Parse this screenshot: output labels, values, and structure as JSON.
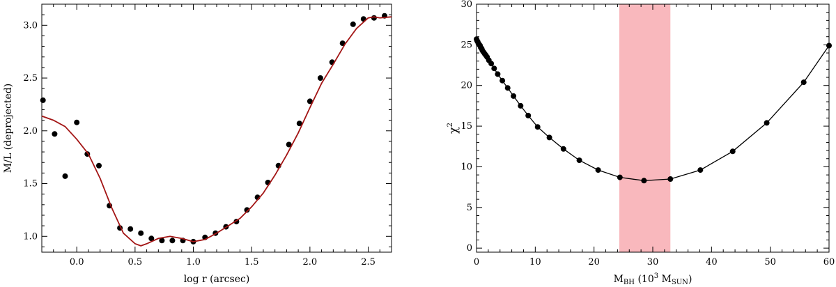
{
  "chart_data": [
    {
      "type": "scatter",
      "xlabel": "log r (arcsec)",
      "ylabel": "M/L (deprojected)",
      "xlim": [
        -0.3,
        2.7
      ],
      "ylim": [
        0.85,
        3.2
      ],
      "xticks": [
        0.0,
        0.5,
        1.0,
        1.5,
        2.0,
        2.5
      ],
      "xtick_labels": [
        "0.0",
        "0.5",
        "1.0",
        "1.5",
        "2.0",
        "2.5"
      ],
      "yticks": [
        1.0,
        1.5,
        2.0,
        2.5,
        3.0
      ],
      "ytick_labels": [
        "1.0",
        "1.5",
        "2.0",
        "2.5",
        "3.0"
      ],
      "grid": false,
      "series": [
        {
          "kind": "points",
          "color": "#000000",
          "x": [
            -0.29,
            -0.19,
            -0.1,
            0.0,
            0.09,
            0.19,
            0.28,
            0.37,
            0.46,
            0.55,
            0.64,
            0.73,
            0.82,
            0.91,
            1.0,
            1.1,
            1.19,
            1.28,
            1.37,
            1.46,
            1.55,
            1.64,
            1.73,
            1.82,
            1.91,
            2.0,
            2.09,
            2.19,
            2.28,
            2.37,
            2.46,
            2.55,
            2.64
          ],
          "y": [
            2.29,
            1.97,
            1.57,
            2.08,
            1.78,
            1.67,
            1.29,
            1.08,
            1.07,
            1.03,
            0.98,
            0.96,
            0.96,
            0.96,
            0.95,
            0.99,
            1.03,
            1.09,
            1.14,
            1.25,
            1.37,
            1.51,
            1.67,
            1.87,
            2.07,
            2.28,
            2.5,
            2.65,
            2.83,
            3.01,
            3.06,
            3.07,
            3.09
          ]
        },
        {
          "kind": "line",
          "color": "#a31515",
          "x": [
            -0.3,
            -0.2,
            -0.1,
            0.0,
            0.1,
            0.2,
            0.3,
            0.4,
            0.5,
            0.55,
            0.6,
            0.7,
            0.8,
            0.9,
            1.0,
            1.1,
            1.2,
            1.3,
            1.4,
            1.5,
            1.6,
            1.7,
            1.8,
            1.9,
            2.0,
            2.1,
            2.2,
            2.3,
            2.4,
            2.5,
            2.55,
            2.6,
            2.7
          ],
          "y": [
            2.14,
            2.1,
            2.04,
            1.92,
            1.78,
            1.55,
            1.27,
            1.03,
            0.93,
            0.91,
            0.93,
            0.98,
            1.0,
            0.98,
            0.95,
            0.97,
            1.03,
            1.1,
            1.17,
            1.28,
            1.41,
            1.58,
            1.77,
            1.98,
            2.22,
            2.45,
            2.63,
            2.82,
            2.97,
            3.07,
            3.08,
            3.07,
            3.08
          ]
        }
      ]
    },
    {
      "type": "line",
      "xlabel_main": "M",
      "xlabel_sub": "BH",
      "xlabel_paren": " (10",
      "xlabel_exp": "3",
      "xlabel_unit": " M",
      "xlabel_unit_sub": "SUN",
      "xlabel_close": ")",
      "ylabel": "χ",
      "ylabel_exp": "2",
      "xlim": [
        0,
        60
      ],
      "ylim": [
        -0.5,
        30
      ],
      "xticks": [
        0,
        10,
        20,
        30,
        40,
        50,
        60
      ],
      "xtick_labels": [
        "0",
        "10",
        "20",
        "30",
        "40",
        "50",
        "60"
      ],
      "yticks": [
        0,
        5,
        10,
        15,
        20,
        25,
        30
      ],
      "ytick_labels": [
        "0",
        "5",
        "10",
        "15",
        "20",
        "25",
        "30"
      ],
      "grid": false,
      "shaded_band": {
        "x0": 24.3,
        "x1": 33.0,
        "color": "#f9b8bd"
      },
      "series": [
        {
          "kind": "points+line",
          "color": "#000000",
          "x": [
            0.0,
            0.1,
            0.2,
            0.3,
            0.4,
            0.5,
            0.6,
            0.7,
            0.8,
            0.9,
            1.0,
            1.2,
            1.4,
            1.6,
            1.8,
            2.1,
            2.5,
            3.0,
            3.6,
            4.4,
            5.3,
            6.3,
            7.5,
            8.8,
            10.4,
            12.4,
            14.8,
            17.5,
            20.7,
            24.4,
            28.5,
            33.0,
            38.1,
            43.6,
            49.4,
            55.7,
            60.0
          ],
          "y": [
            25.7,
            25.5,
            25.4,
            25.2,
            25.1,
            25.0,
            24.9,
            24.7,
            24.6,
            24.5,
            24.3,
            24.1,
            23.9,
            23.7,
            23.5,
            23.1,
            22.7,
            22.1,
            21.4,
            20.6,
            19.7,
            18.7,
            17.5,
            16.3,
            14.9,
            13.6,
            12.2,
            10.8,
            9.6,
            8.7,
            8.3,
            8.5,
            9.6,
            11.9,
            15.4,
            20.4,
            24.9
          ]
        }
      ]
    }
  ]
}
